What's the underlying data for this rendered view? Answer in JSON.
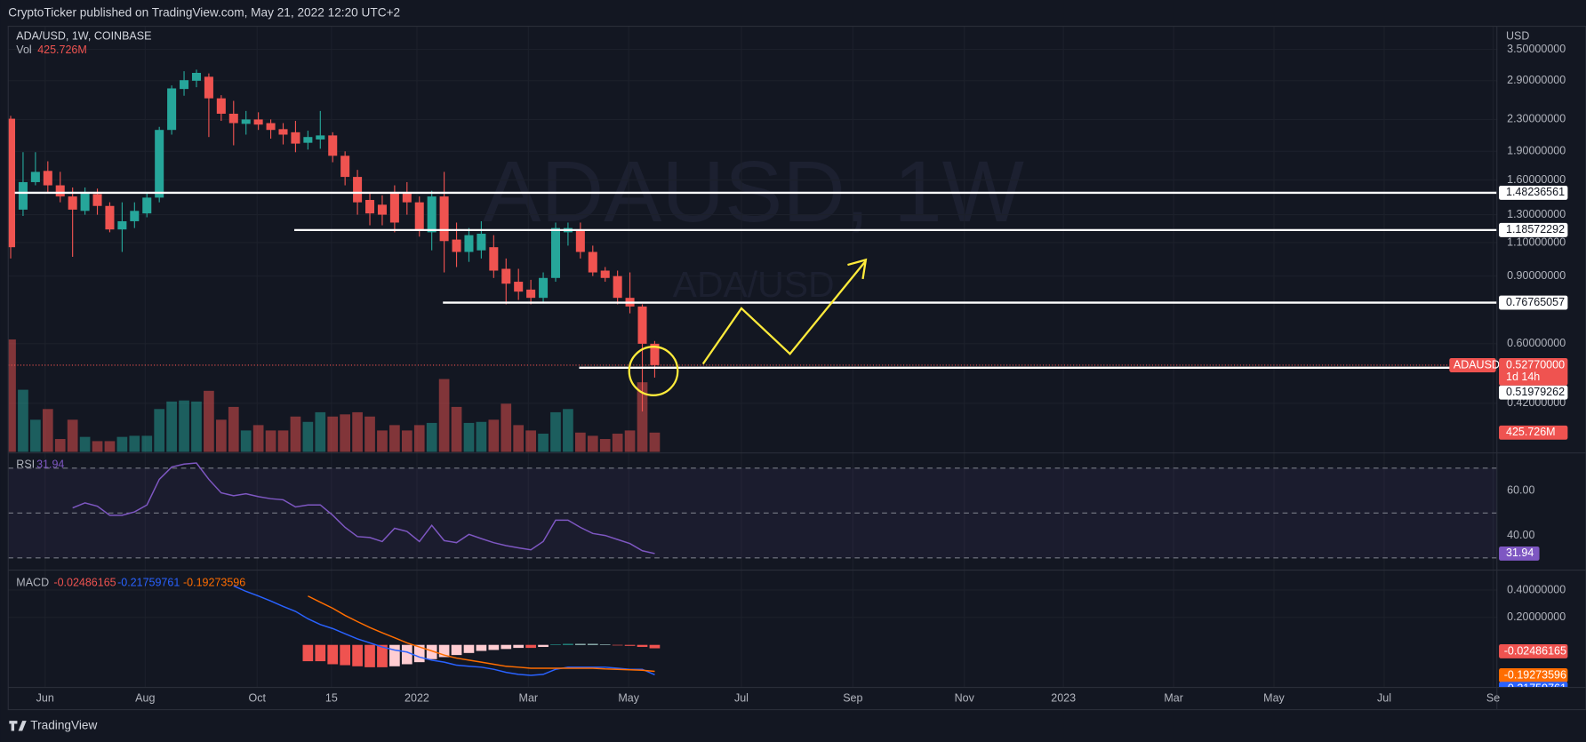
{
  "header": {
    "publisher": "CryptoTicker published on TradingView.com, May 21, 2022 12:20 UTC+2",
    "logo": "TradingView"
  },
  "chart_data": {
    "type": "candlestick",
    "legend": "ADA/USD, 1W, COINBASE",
    "watermark": "ADAUSD, 1W",
    "watermark_sub": "ADA/USD",
    "currency": "USD",
    "up_color": "#26a69a",
    "down_color": "#ef5350",
    "grid": true,
    "log_scale": true,
    "xlim": [
      -0.2,
      120
    ],
    "xticks": [
      {
        "value": 2.78,
        "label": "Jun"
      },
      {
        "value": 10.86,
        "label": "Aug"
      },
      {
        "value": 19.9,
        "label": "Oct"
      },
      {
        "value": 25.9,
        "label": "15"
      },
      {
        "value": 32.8,
        "label": "2022"
      },
      {
        "value": 41.8,
        "label": "Mar"
      },
      {
        "value": 49.9,
        "label": "May"
      },
      {
        "value": 59.0,
        "label": "Jul"
      },
      {
        "value": 68.0,
        "label": "Sep"
      },
      {
        "value": 77.0,
        "label": "Nov"
      },
      {
        "value": 85.0,
        "label": "2023"
      },
      {
        "value": 93.9,
        "label": "Mar"
      },
      {
        "value": 102.0,
        "label": "May"
      },
      {
        "value": 110.9,
        "label": "Jul"
      },
      {
        "value": 119.7,
        "label": "Se"
      }
    ],
    "ylim": [
      0.314,
      3.97
    ],
    "yticks": [
      {
        "value": 3.5,
        "label": "3.50000000"
      },
      {
        "value": 2.9,
        "label": "2.90000000"
      },
      {
        "value": 2.3,
        "label": "2.30000000"
      },
      {
        "value": 1.9,
        "label": "1.90000000"
      },
      {
        "value": 1.6,
        "label": "1.60000000"
      },
      {
        "value": 1.3,
        "label": "1.30000000"
      },
      {
        "value": 1.1,
        "label": "1.10000000"
      },
      {
        "value": 0.9,
        "label": "0.90000000"
      },
      {
        "value": 0.6,
        "label": "0.60000000"
      },
      {
        "value": 0.42,
        "label": "0.42000000"
      }
    ],
    "open": [
      2.31,
      1.34,
      1.58,
      1.69,
      1.55,
      1.45,
      1.33,
      1.47,
      1.37,
      1.19,
      1.25,
      1.31,
      1.44,
      2.16,
      2.76,
      2.9,
      2.97,
      2.61,
      2.38,
      2.24,
      2.3,
      2.25,
      2.17,
      2.13,
      2.0,
      2.04,
      2.09,
      1.85,
      1.63,
      1.42,
      1.38,
      1.48,
      1.48,
      1.4,
      1.17,
      1.45,
      1.12,
      1.04,
      1.05,
      1.07,
      0.94,
      0.87,
      0.83,
      0.79,
      0.89,
      1.17,
      1.19,
      1.04,
      0.93,
      0.9,
      0.79,
      0.75,
      0.6
    ],
    "high": [
      2.35,
      1.89,
      1.89,
      1.79,
      1.68,
      1.53,
      1.53,
      1.52,
      1.4,
      1.4,
      1.4,
      1.49,
      2.2,
      2.82,
      3.07,
      3.1,
      3.03,
      2.66,
      2.57,
      2.42,
      2.4,
      2.3,
      2.25,
      2.28,
      2.15,
      2.42,
      2.13,
      1.9,
      1.7,
      1.48,
      1.46,
      1.55,
      1.58,
      1.45,
      1.5,
      1.68,
      1.24,
      1.2,
      1.25,
      1.15,
      1.0,
      0.94,
      0.88,
      0.92,
      1.24,
      1.24,
      1.24,
      1.08,
      0.95,
      0.93,
      0.92,
      0.76,
      0.61
    ],
    "low": [
      1.0,
      1.29,
      1.55,
      1.49,
      1.4,
      1.01,
      1.3,
      1.3,
      1.17,
      1.04,
      1.2,
      1.28,
      1.4,
      2.1,
      2.65,
      2.79,
      2.07,
      2.28,
      1.97,
      2.1,
      2.16,
      2.05,
      1.98,
      1.89,
      1.92,
      1.93,
      1.78,
      1.55,
      1.3,
      1.22,
      1.22,
      1.17,
      1.3,
      1.14,
      1.05,
      0.92,
      0.95,
      0.98,
      1.0,
      0.89,
      0.76,
      0.78,
      0.76,
      0.77,
      0.87,
      1.08,
      1.0,
      0.9,
      0.87,
      0.76,
      0.72,
      0.4,
      0.49
    ],
    "close": [
      1.07,
      1.58,
      1.68,
      1.55,
      1.45,
      1.34,
      1.49,
      1.37,
      1.19,
      1.25,
      1.33,
      1.44,
      2.16,
      2.77,
      2.91,
      3.04,
      2.61,
      2.38,
      2.25,
      2.3,
      2.23,
      2.16,
      2.1,
      1.99,
      2.07,
      2.09,
      1.85,
      1.63,
      1.4,
      1.31,
      1.3,
      1.24,
      1.4,
      1.19,
      1.45,
      1.11,
      1.04,
      1.15,
      1.16,
      0.93,
      0.86,
      0.82,
      0.79,
      0.89,
      1.2,
      1.2,
      1.04,
      0.92,
      0.89,
      0.79,
      0.75,
      0.6,
      0.528
    ],
    "levels": [
      {
        "value": 1.48236561,
        "x_start": 0.33
      },
      {
        "value": 1.18572292,
        "x_start": 22.9
      },
      {
        "value": 0.76765057,
        "x_start": 34.9
      },
      {
        "value": 0.51979262,
        "x_start": 45.9
      }
    ],
    "last_price": {
      "symbol": "ADAUSD",
      "value": 0.5277,
      "value_label": "0.52770000",
      "countdown": "1d 14h"
    },
    "volume": {
      "name": "Vol",
      "ylim": [
        0,
        2500
      ],
      "values": [
        2483,
        1372,
        710,
        946,
        284,
        710,
        331,
        237,
        237,
        331,
        355,
        355,
        946,
        1112,
        1135,
        1112,
        1348,
        710,
        993,
        473,
        591,
        473,
        473,
        780,
        662,
        875,
        780,
        828,
        875,
        780,
        473,
        591,
        473,
        591,
        639,
        1608,
        993,
        639,
        662,
        710,
        1064,
        591,
        473,
        402,
        875,
        946,
        426,
        355,
        284,
        402,
        473,
        1537,
        425.726
      ],
      "last_value_label": "425.726M"
    },
    "rsi": {
      "name": "RSI",
      "color": "#7e57c2",
      "ylim": [
        25,
        75
      ],
      "yticks": [
        {
          "value": 60,
          "label": "60.00"
        },
        {
          "value": 40,
          "label": "40.00"
        }
      ],
      "levels": [
        70,
        50,
        30
      ],
      "values": [
        null,
        null,
        null,
        null,
        null,
        52.3,
        54.5,
        53,
        49,
        49,
        50.5,
        53.6,
        65,
        70.5,
        71.8,
        72.3,
        65,
        59,
        57.7,
        58.6,
        57.3,
        56.4,
        55.9,
        52.7,
        53.6,
        53.6,
        49,
        43.6,
        39.5,
        39.1,
        37.3,
        43.2,
        41.8,
        37.3,
        44.5,
        37.7,
        36.8,
        40.5,
        38.6,
        36.8,
        35.5,
        34.5,
        33.6,
        37.3,
        46.8,
        46.8,
        43.6,
        40.9,
        40,
        38.2,
        36.4,
        33.2,
        31.94
      ]
    },
    "macd": {
      "name": "MACD",
      "ylim": [
        -0.31,
        0.53
      ],
      "yticks": [
        {
          "value": 0.4,
          "label": "0.40000000"
        },
        {
          "value": 0.2,
          "label": "0.20000000"
        }
      ],
      "histogram": {
        "colors": {
          "grow_above": "#26a69a",
          "fall_above": "#b2dfdb",
          "grow_below": "#ffcdd2",
          "fall_below": "#ef5350"
        },
        "values": [
          null,
          null,
          null,
          null,
          null,
          null,
          null,
          null,
          null,
          null,
          null,
          null,
          null,
          null,
          null,
          null,
          null,
          null,
          null,
          null,
          null,
          null,
          null,
          null,
          -0.119,
          -0.119,
          -0.141,
          -0.148,
          -0.156,
          -0.163,
          -0.163,
          -0.156,
          -0.141,
          -0.126,
          -0.104,
          -0.089,
          -0.074,
          -0.059,
          -0.044,
          -0.037,
          -0.03,
          -0.022,
          -0.022,
          -0.015,
          0.002,
          0.007,
          0.007,
          0.007,
          0.003,
          -0.004,
          -0.007,
          -0.015,
          -0.02486165
        ]
      },
      "macd": {
        "color": "#2962ff",
        "values": [
          null,
          null,
          null,
          null,
          null,
          null,
          null,
          null,
          null,
          null,
          null,
          null,
          null,
          null,
          null,
          null,
          null,
          null,
          0.43,
          0.39,
          0.356,
          0.32,
          0.28,
          0.244,
          0.19,
          0.148,
          0.119,
          0.081,
          0.044,
          0.015,
          -0.015,
          -0.037,
          -0.052,
          -0.089,
          -0.111,
          -0.126,
          -0.148,
          -0.156,
          -0.163,
          -0.178,
          -0.2,
          -0.215,
          -0.222,
          -0.215,
          -0.178,
          -0.163,
          -0.163,
          -0.163,
          -0.163,
          -0.17,
          -0.178,
          -0.178,
          -0.21759761
        ]
      },
      "signal": {
        "color": "#ff6d00",
        "values": [
          null,
          null,
          null,
          null,
          null,
          null,
          null,
          null,
          null,
          null,
          null,
          null,
          null,
          null,
          null,
          null,
          null,
          null,
          null,
          null,
          null,
          null,
          null,
          null,
          0.356,
          0.311,
          0.267,
          0.215,
          0.17,
          0.126,
          0.089,
          0.052,
          0.015,
          -0.015,
          -0.044,
          -0.074,
          -0.096,
          -0.111,
          -0.126,
          -0.141,
          -0.156,
          -0.163,
          -0.17,
          -0.17,
          -0.17,
          -0.17,
          -0.17,
          -0.17,
          -0.175,
          -0.178,
          -0.182,
          -0.185,
          -0.19273596
        ]
      }
    }
  }
}
